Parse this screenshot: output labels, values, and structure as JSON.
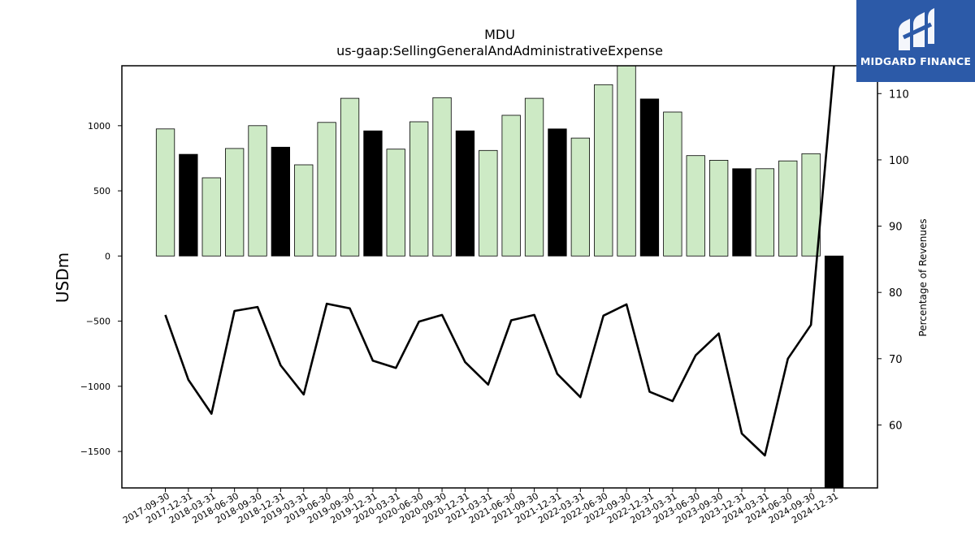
{
  "brand": {
    "name": "MIDGARD FINANCE",
    "bg_color": "#2c5aa8"
  },
  "chart_data": {
    "type": "bar",
    "title": "MDU",
    "subtitle": "us-gaap:SellingGeneralAndAdministrativeExpense",
    "ylabel": "USDm",
    "y2label": "Percentage of Revenues",
    "ylim": [
      -1780,
      1460
    ],
    "y2lim": [
      50.5,
      114.2
    ],
    "yticks": [
      -1500,
      -1000,
      -500,
      0,
      500,
      1000
    ],
    "y2ticks": [
      60,
      70,
      80,
      90,
      100,
      110
    ],
    "categories": [
      "2017-09-30",
      "2017-12-31",
      "2018-03-31",
      "2018-06-30",
      "2018-09-30",
      "2018-12-31",
      "2019-03-31",
      "2019-06-30",
      "2019-09-30",
      "2019-12-31",
      "2020-03-31",
      "2020-06-30",
      "2020-09-30",
      "2020-12-31",
      "2021-03-31",
      "2021-06-30",
      "2021-09-30",
      "2021-12-31",
      "2022-03-31",
      "2022-06-30",
      "2022-09-30",
      "2022-12-31",
      "2023-03-31",
      "2023-06-30",
      "2023-09-30",
      "2023-12-31",
      "2024-03-31",
      "2024-06-30",
      "2024-09-30",
      "2024-12-31"
    ],
    "series": [
      {
        "type": "bar",
        "axis": "left",
        "values": [
          975,
          780,
          600,
          825,
          1000,
          835,
          700,
          1025,
          1210,
          960,
          820,
          1030,
          1215,
          960,
          810,
          1080,
          1210,
          975,
          905,
          1315,
          1460,
          1205,
          1105,
          770,
          735,
          670,
          670,
          730,
          785,
          -1780
        ],
        "colors": [
          "#cdeac5",
          "#000000",
          "#cdeac5",
          "#cdeac5",
          "#cdeac5",
          "#000000",
          "#cdeac5",
          "#cdeac5",
          "#cdeac5",
          "#000000",
          "#cdeac5",
          "#cdeac5",
          "#cdeac5",
          "#000000",
          "#cdeac5",
          "#cdeac5",
          "#cdeac5",
          "#000000",
          "#cdeac5",
          "#cdeac5",
          "#cdeac5",
          "#000000",
          "#cdeac5",
          "#cdeac5",
          "#cdeac5",
          "#000000",
          "#cdeac5",
          "#cdeac5",
          "#cdeac5",
          "#000000"
        ]
      },
      {
        "type": "line",
        "axis": "right",
        "color": "#000000",
        "values": [
          76.6,
          66.8,
          61.7,
          77.2,
          77.8,
          69.0,
          64.6,
          78.3,
          77.6,
          69.7,
          68.6,
          75.6,
          76.6,
          69.5,
          66.1,
          75.8,
          76.6,
          67.7,
          64.2,
          76.5,
          78.2,
          65.0,
          63.6,
          70.5,
          73.8,
          58.7,
          55.4,
          70.0,
          75.1,
          114.2
        ]
      }
    ]
  }
}
